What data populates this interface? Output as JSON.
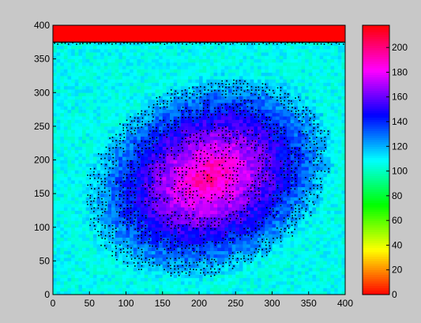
{
  "window": {
    "background": "#c8c8c8"
  },
  "chart_data": [
    {
      "type": "heatmap",
      "title": "",
      "xlabel": "",
      "ylabel": "",
      "xlim": [
        0,
        400
      ],
      "ylim": [
        0,
        400
      ],
      "x_ticks": [
        0,
        50,
        100,
        150,
        200,
        250,
        300,
        350,
        400
      ],
      "y_ticks": [
        0,
        50,
        100,
        150,
        200,
        250,
        300,
        350,
        400
      ],
      "grid": false,
      "colormap": "hsv",
      "colorbar": {
        "placement": "right",
        "range": [
          0,
          218
        ],
        "ticks": [
          0,
          20,
          40,
          60,
          80,
          100,
          120,
          140,
          160,
          180,
          200
        ]
      },
      "field": {
        "description_values": "concentric speckled ellipse, peak near center",
        "peak_value": 200,
        "peak_location": [
          215,
          175
        ],
        "rim_value": 120,
        "saturated_band": {
          "y_range": [
            375,
            400
          ],
          "value": 218
        }
      },
      "contour_color": "#000000"
    }
  ]
}
